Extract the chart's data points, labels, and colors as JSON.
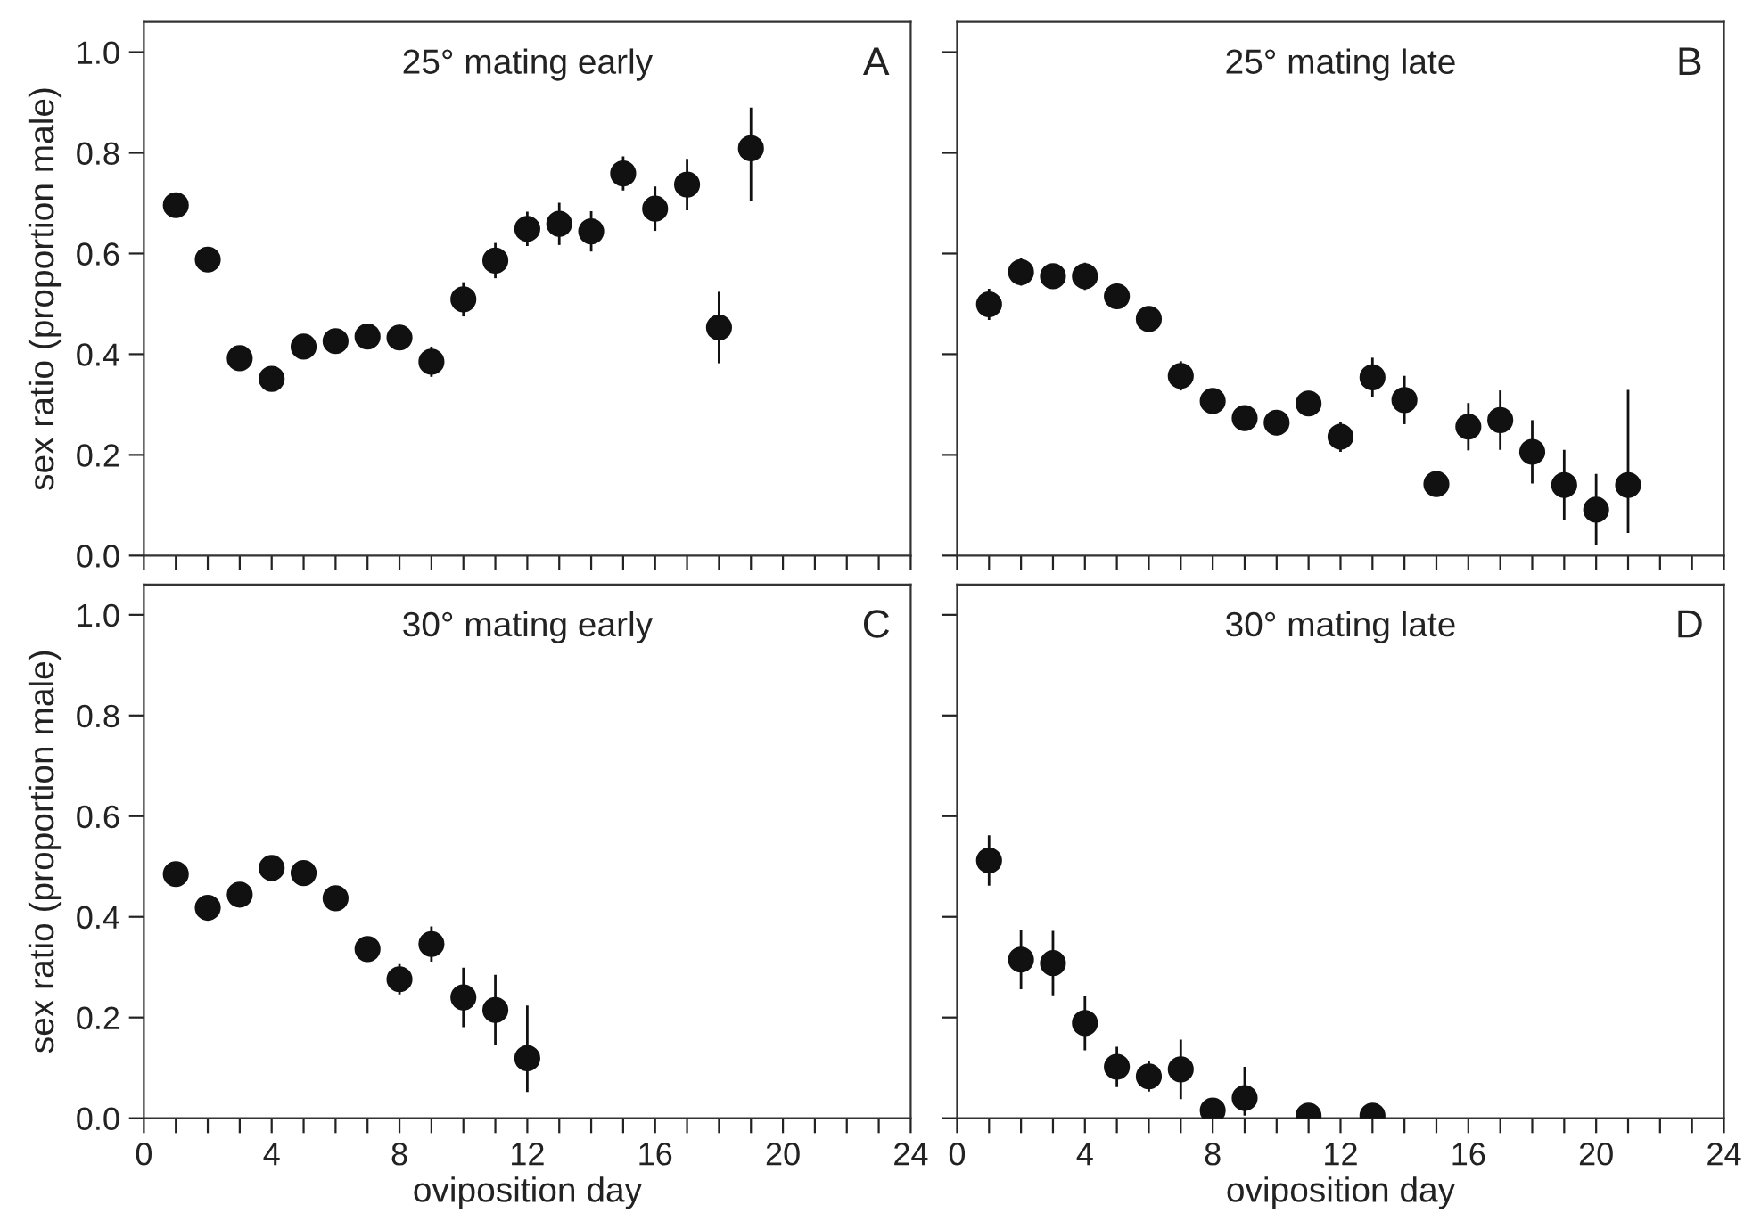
{
  "chart_data": [
    {
      "type": "scatter",
      "title": "25° mating early",
      "annotations": [
        "A"
      ],
      "ylabel": "sex ratio (proportion male)",
      "marker": "circle",
      "grid": false,
      "legend": false,
      "tick_labels": "y",
      "x": [
        1,
        2,
        3,
        4,
        5,
        6,
        7,
        8,
        9,
        10,
        11,
        12,
        13,
        14,
        15,
        16,
        17,
        18,
        19
      ],
      "series": [
        {
          "color": "#111111",
          "values": [
            0.696,
            0.588,
            0.392,
            0.351,
            0.415,
            0.426,
            0.435,
            0.433,
            0.385,
            0.509,
            0.586,
            0.649,
            0.659,
            0.644,
            0.759,
            0.689,
            0.737,
            0.453,
            0.809
          ],
          "errors": [
            0.024,
            0.01,
            0.01,
            0.01,
            0.015,
            0.015,
            0.02,
            0.025,
            0.03,
            0.034,
            0.035,
            0.034,
            0.042,
            0.04,
            0.034,
            0.044,
            0.051,
            0.071,
            [
              0.704,
              0.89
            ]
          ]
        }
      ],
      "xlim": [
        0,
        24
      ],
      "xticks": [
        {
          "value": 0,
          "label": null
        },
        {
          "value": 1,
          "label": null
        },
        {
          "value": 2,
          "label": null
        },
        {
          "value": 3,
          "label": null
        },
        {
          "value": 4,
          "label": null
        },
        {
          "value": 5,
          "label": null
        },
        {
          "value": 6,
          "label": null
        },
        {
          "value": 7,
          "label": null
        },
        {
          "value": 8,
          "label": null
        },
        {
          "value": 9,
          "label": null
        },
        {
          "value": 10,
          "label": null
        },
        {
          "value": 11,
          "label": null
        },
        {
          "value": 12,
          "label": null
        },
        {
          "value": 13,
          "label": null
        },
        {
          "value": 14,
          "label": null
        },
        {
          "value": 15,
          "label": null
        },
        {
          "value": 16,
          "label": null
        },
        {
          "value": 17,
          "label": null
        },
        {
          "value": 18,
          "label": null
        },
        {
          "value": 19,
          "label": null
        },
        {
          "value": 20,
          "label": null
        },
        {
          "value": 21,
          "label": null
        },
        {
          "value": 22,
          "label": null
        },
        {
          "value": 23,
          "label": null
        },
        {
          "value": 24,
          "label": null
        }
      ],
      "ylim": [
        0,
        1.06
      ],
      "yticks": [
        {
          "value": 0,
          "label": "0.0"
        },
        {
          "value": 0.2,
          "label": "0.2"
        },
        {
          "value": 0.4,
          "label": "0.4"
        },
        {
          "value": 0.6,
          "label": "0.6"
        },
        {
          "value": 0.8,
          "label": "0.8"
        },
        {
          "value": 1,
          "label": "1.0"
        }
      ]
    },
    {
      "type": "scatter",
      "title": "25° mating late",
      "annotations": [
        "B"
      ],
      "marker": "circle",
      "grid": false,
      "legend": false,
      "tick_labels": false,
      "x": [
        1,
        2,
        3,
        4,
        5,
        6,
        7,
        8,
        9,
        10,
        11,
        12,
        13,
        14,
        15,
        16,
        17,
        18,
        19,
        20,
        21
      ],
      "series": [
        {
          "color": "#111111",
          "values": [
            0.499,
            0.563,
            0.555,
            0.555,
            0.515,
            0.47,
            0.357,
            0.307,
            0.273,
            0.264,
            0.302,
            0.236,
            0.354,
            0.309,
            0.142,
            0.256,
            0.269,
            0.206,
            0.14,
            0.091,
            0.14
          ],
          "errors": [
            0.031,
            0.027,
            0.022,
            0.027,
            0.025,
            0.025,
            0.029,
            0.025,
            0.025,
            0.025,
            0.025,
            0.03,
            0.039,
            0.048,
            0.025,
            0.047,
            0.059,
            0.063,
            0.07,
            0.071,
            [
              0.045,
              0.329
            ]
          ]
        }
      ],
      "xlim": [
        0,
        24
      ],
      "xticks": [
        {
          "value": 0,
          "label": null
        },
        {
          "value": 1,
          "label": null
        },
        {
          "value": 2,
          "label": null
        },
        {
          "value": 3,
          "label": null
        },
        {
          "value": 4,
          "label": null
        },
        {
          "value": 5,
          "label": null
        },
        {
          "value": 6,
          "label": null
        },
        {
          "value": 7,
          "label": null
        },
        {
          "value": 8,
          "label": null
        },
        {
          "value": 9,
          "label": null
        },
        {
          "value": 10,
          "label": null
        },
        {
          "value": 11,
          "label": null
        },
        {
          "value": 12,
          "label": null
        },
        {
          "value": 13,
          "label": null
        },
        {
          "value": 14,
          "label": null
        },
        {
          "value": 15,
          "label": null
        },
        {
          "value": 16,
          "label": null
        },
        {
          "value": 17,
          "label": null
        },
        {
          "value": 18,
          "label": null
        },
        {
          "value": 19,
          "label": null
        },
        {
          "value": 20,
          "label": null
        },
        {
          "value": 21,
          "label": null
        },
        {
          "value": 22,
          "label": null
        },
        {
          "value": 23,
          "label": null
        },
        {
          "value": 24,
          "label": null
        }
      ],
      "ylim": [
        0,
        1.06
      ],
      "yticks": [
        {
          "value": 0,
          "label": null
        },
        {
          "value": 0.2,
          "label": null
        },
        {
          "value": 0.4,
          "label": null
        },
        {
          "value": 0.6,
          "label": null
        },
        {
          "value": 0.8,
          "label": null
        },
        {
          "value": 1,
          "label": null
        }
      ]
    },
    {
      "type": "scatter",
      "title": "30° mating early",
      "annotations": [
        "C"
      ],
      "xlabel": "oviposition day",
      "ylabel": "sex ratio (proportion male)",
      "marker": "circle",
      "grid": false,
      "legend": false,
      "x": [
        1,
        2,
        3,
        4,
        5,
        6,
        7,
        8,
        9,
        10,
        11,
        12
      ],
      "series": [
        {
          "color": "#111111",
          "values": [
            0.485,
            0.418,
            0.444,
            0.497,
            0.487,
            0.437,
            0.336,
            0.276,
            0.346,
            0.24,
            0.215,
            0.119
          ],
          "errors": [
            0.01,
            0.01,
            0.01,
            0.01,
            0.01,
            0.01,
            0.02,
            0.03,
            0.035,
            0.059,
            0.07,
            [
              0.052,
              0.224
            ]
          ]
        }
      ],
      "xlim": [
        0,
        24
      ],
      "xticks": [
        0,
        {
          "value": 1,
          "label": null
        },
        {
          "value": 2,
          "label": null
        },
        {
          "value": 3,
          "label": null
        },
        4,
        {
          "value": 5,
          "label": null
        },
        {
          "value": 6,
          "label": null
        },
        {
          "value": 7,
          "label": null
        },
        8,
        {
          "value": 9,
          "label": null
        },
        {
          "value": 10,
          "label": null
        },
        {
          "value": 11,
          "label": null
        },
        12,
        {
          "value": 13,
          "label": null
        },
        {
          "value": 14,
          "label": null
        },
        {
          "value": 15,
          "label": null
        },
        16,
        {
          "value": 17,
          "label": null
        },
        {
          "value": 18,
          "label": null
        },
        {
          "value": 19,
          "label": null
        },
        20,
        {
          "value": 21,
          "label": null
        },
        {
          "value": 22,
          "label": null
        },
        {
          "value": 23,
          "label": null
        },
        24
      ],
      "ylim": [
        0,
        1.06
      ],
      "yticks": [
        {
          "value": 0,
          "label": "0.0"
        },
        {
          "value": 0.2,
          "label": "0.2"
        },
        {
          "value": 0.4,
          "label": "0.4"
        },
        {
          "value": 0.6,
          "label": "0.6"
        },
        {
          "value": 0.8,
          "label": "0.8"
        },
        {
          "value": 1,
          "label": "1.0"
        }
      ]
    },
    {
      "type": "scatter",
      "title": "30° mating late",
      "annotations": [
        "D"
      ],
      "xlabel": "oviposition day",
      "marker": "circle",
      "grid": false,
      "legend": false,
      "tick_labels": "x",
      "x": [
        1,
        2,
        3,
        4,
        5,
        6,
        7,
        8,
        9,
        11,
        13
      ],
      "series": [
        {
          "color": "#111111",
          "values": [
            0.512,
            0.315,
            0.308,
            0.189,
            0.102,
            0.083,
            0.097,
            0.015,
            0.04,
            0.005,
            0.005
          ],
          "errors": [
            0.05,
            0.059,
            0.064,
            0.054,
            0.04,
            0.03,
            0.059,
            0.015,
            [
              0.005,
              0.102
            ],
            null,
            null
          ]
        }
      ],
      "xlim": [
        0,
        24
      ],
      "xticks": [
        0,
        {
          "value": 1,
          "label": null
        },
        {
          "value": 2,
          "label": null
        },
        {
          "value": 3,
          "label": null
        },
        4,
        {
          "value": 5,
          "label": null
        },
        {
          "value": 6,
          "label": null
        },
        {
          "value": 7,
          "label": null
        },
        8,
        {
          "value": 9,
          "label": null
        },
        {
          "value": 10,
          "label": null
        },
        {
          "value": 11,
          "label": null
        },
        12,
        {
          "value": 13,
          "label": null
        },
        {
          "value": 14,
          "label": null
        },
        {
          "value": 15,
          "label": null
        },
        16,
        {
          "value": 17,
          "label": null
        },
        {
          "value": 18,
          "label": null
        },
        {
          "value": 19,
          "label": null
        },
        20,
        {
          "value": 21,
          "label": null
        },
        {
          "value": 22,
          "label": null
        },
        {
          "value": 23,
          "label": null
        },
        24
      ],
      "ylim": [
        0,
        1.06
      ],
      "yticks": [
        {
          "value": 0,
          "label": null
        },
        {
          "value": 0.2,
          "label": null
        },
        {
          "value": 0.4,
          "label": null
        },
        {
          "value": 0.6,
          "label": null
        },
        {
          "value": 0.8,
          "label": null
        },
        {
          "value": 1,
          "label": null
        }
      ]
    }
  ]
}
